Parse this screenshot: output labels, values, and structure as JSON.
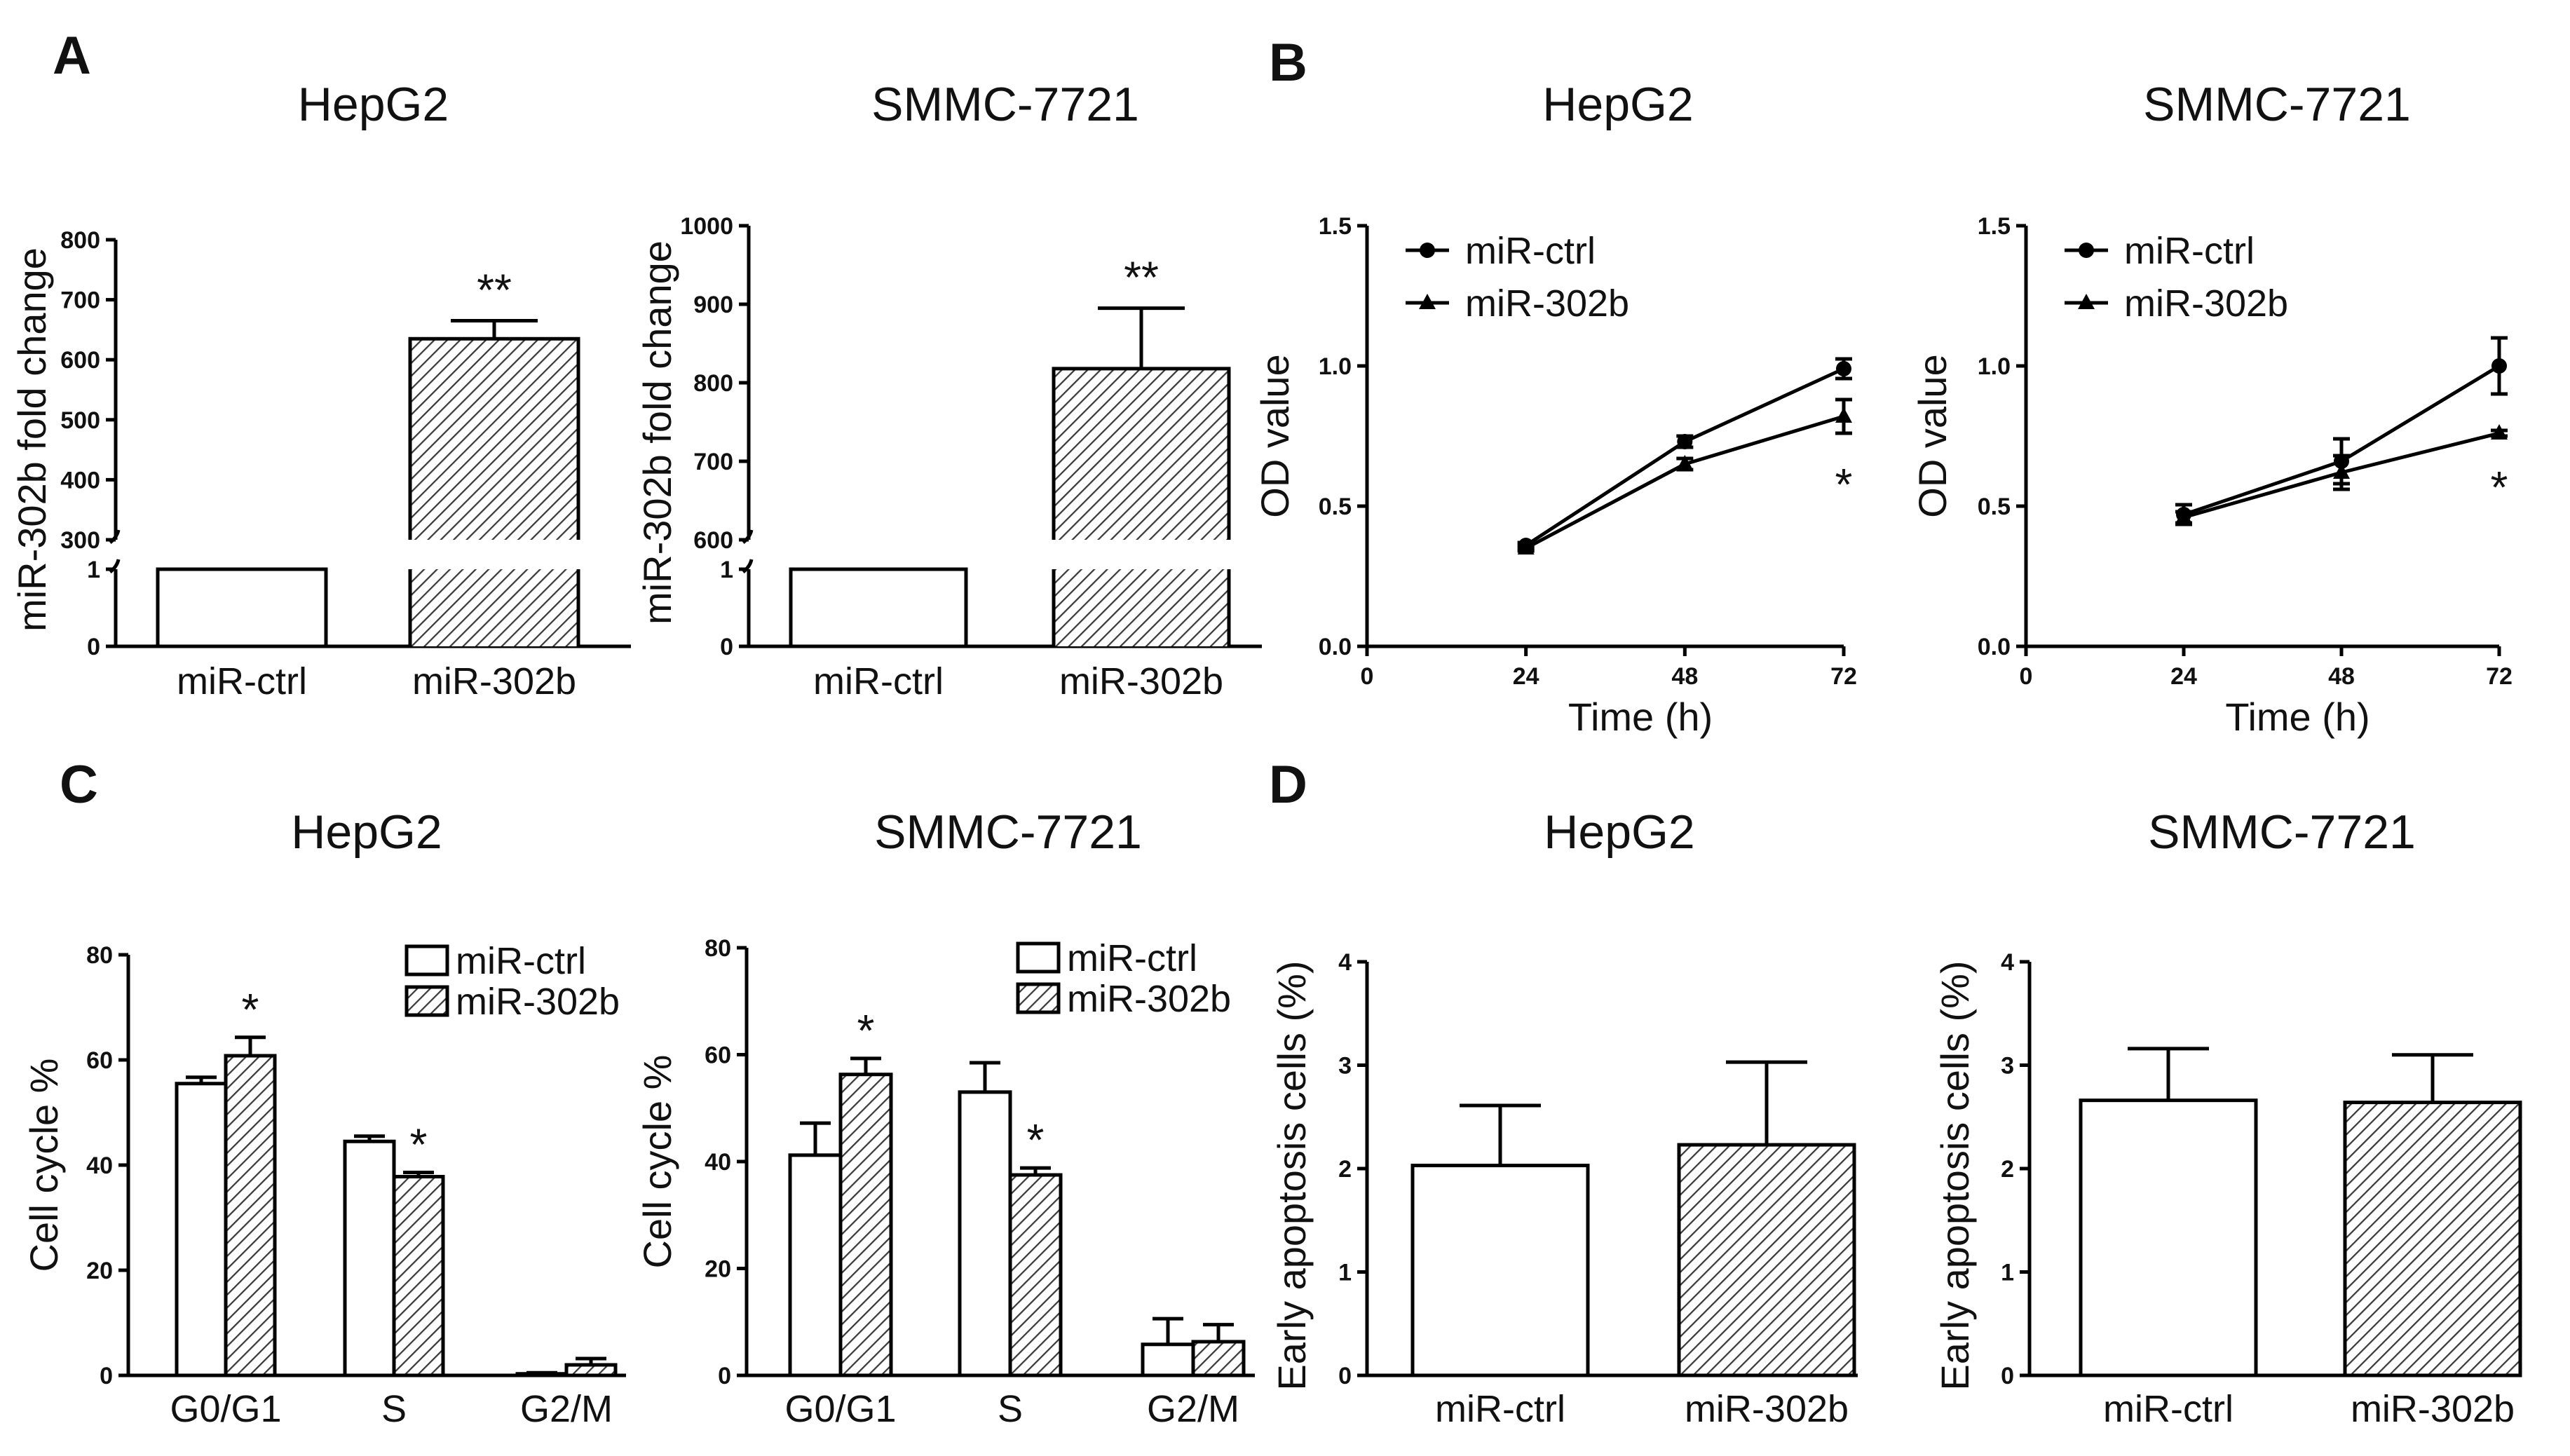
{
  "panel_labels": [
    "A",
    "B",
    "C",
    "D"
  ],
  "chart_data": [
    {
      "type": "bar",
      "panel": "A",
      "title": "HepG2",
      "categories": [
        "miR-ctrl",
        "miR-302b"
      ],
      "values": [
        1,
        635
      ],
      "errors": [
        0,
        30
      ],
      "styles": [
        "open",
        "hatched"
      ],
      "annotations": [
        "",
        "**"
      ],
      "ylabel": "miR-302b fold change",
      "ylim": [
        0,
        800
      ],
      "axis_break": [
        1,
        300
      ],
      "yticks_lower": [
        "0",
        "1"
      ],
      "yticks_upper": [
        "300",
        "400",
        "500",
        "600",
        "700",
        "800"
      ]
    },
    {
      "type": "bar",
      "panel": "A",
      "title": "SMMC-7721",
      "categories": [
        "miR-ctrl",
        "miR-302b"
      ],
      "values": [
        1,
        818
      ],
      "errors": [
        0,
        77
      ],
      "styles": [
        "open",
        "hatched"
      ],
      "annotations": [
        "",
        "**"
      ],
      "ylabel": "miR-302b fold change",
      "ylim": [
        0,
        1000
      ],
      "axis_break": [
        1,
        600
      ],
      "yticks_lower": [
        "0",
        "1"
      ],
      "yticks_upper": [
        "600",
        "700",
        "800",
        "900",
        "1000"
      ]
    },
    {
      "type": "line",
      "panel": "B",
      "title": "HepG2",
      "x": [
        24,
        48,
        72
      ],
      "series": [
        {
          "name": "miR-ctrl",
          "marker": "circle",
          "values": [
            0.36,
            0.73,
            0.99
          ],
          "errors": [
            0.01,
            0.02,
            0.035
          ]
        },
        {
          "name": "miR-302b",
          "marker": "triangle",
          "values": [
            0.35,
            0.65,
            0.82
          ],
          "errors": [
            0.01,
            0.02,
            0.06
          ]
        }
      ],
      "annotation": {
        "x": 72,
        "text": "*"
      },
      "xlabel": "Time (h)",
      "ylabel": "OD value",
      "xlim": [
        0,
        72
      ],
      "ylim": [
        0,
        1.5
      ],
      "xticks": [
        "0",
        "24",
        "48",
        "72"
      ],
      "yticks": [
        "0.0",
        "0.5",
        "1.0",
        "1.5"
      ],
      "legend": "top-left"
    },
    {
      "type": "line",
      "panel": "B",
      "title": "SMMC-7721",
      "x": [
        24,
        48,
        72
      ],
      "series": [
        {
          "name": "miR-ctrl",
          "marker": "circle",
          "values": [
            0.47,
            0.66,
            1.0
          ],
          "errors": [
            0.035,
            0.08,
            0.1
          ]
        },
        {
          "name": "miR-302b",
          "marker": "triangle",
          "values": [
            0.46,
            0.62,
            0.76
          ],
          "errors": [
            0.02,
            0.06,
            0.01
          ]
        }
      ],
      "annotation": {
        "x": 72,
        "text": "*"
      },
      "xlabel": "Time (h)",
      "ylabel": "OD value",
      "xlim": [
        0,
        72
      ],
      "ylim": [
        0,
        1.5
      ],
      "xticks": [
        "0",
        "24",
        "48",
        "72"
      ],
      "yticks": [
        "0.0",
        "0.5",
        "1.0",
        "1.5"
      ],
      "legend": "top-left"
    },
    {
      "type": "bar",
      "panel": "C",
      "title": "HepG2",
      "categories": [
        "G0/G1",
        "S",
        "G2/M"
      ],
      "series": [
        {
          "name": "miR-ctrl",
          "style": "open",
          "values": [
            55.5,
            44.5,
            0.3
          ],
          "errors": [
            1.2,
            1.0,
            0.2
          ]
        },
        {
          "name": "miR-302b",
          "style": "hatched",
          "values": [
            60.8,
            37.8,
            2.0
          ],
          "errors": [
            3.5,
            0.8,
            1.2
          ]
        }
      ],
      "annotations": [
        "*",
        "*",
        ""
      ],
      "ylabel": "Cell cycle %",
      "ylim": [
        0,
        80
      ],
      "yticks": [
        "0",
        "20",
        "40",
        "60",
        "80"
      ],
      "legend": "top-right"
    },
    {
      "type": "bar",
      "panel": "C",
      "title": "SMMC-7721",
      "categories": [
        "G0/G1",
        "S",
        "G2/M"
      ],
      "series": [
        {
          "name": "miR-ctrl",
          "style": "open",
          "values": [
            41.2,
            53.0,
            5.8
          ],
          "errors": [
            6.0,
            5.5,
            4.8
          ]
        },
        {
          "name": "miR-302b",
          "style": "hatched",
          "values": [
            56.3,
            37.5,
            6.3
          ],
          "errors": [
            3.0,
            1.3,
            3.2
          ]
        }
      ],
      "annotations": [
        "*",
        "*",
        ""
      ],
      "ylabel": "Cell cycle %",
      "ylim": [
        0,
        80
      ],
      "yticks": [
        "0",
        "20",
        "40",
        "60",
        "80"
      ],
      "legend": "top-right"
    },
    {
      "type": "bar",
      "panel": "D",
      "title": "HepG2",
      "categories": [
        "miR-ctrl",
        "miR-302b"
      ],
      "values": [
        2.03,
        2.23
      ],
      "errors": [
        0.58,
        0.8
      ],
      "styles": [
        "open",
        "hatched"
      ],
      "annotations": [
        "",
        ""
      ],
      "ylabel": "Early apoptosis cells (%)",
      "ylim": [
        0,
        4
      ],
      "yticks": [
        "0",
        "1",
        "2",
        "3",
        "4"
      ]
    },
    {
      "type": "bar",
      "panel": "D",
      "title": "SMMC-7721",
      "categories": [
        "miR-ctrl",
        "miR-302b"
      ],
      "values": [
        2.66,
        2.64
      ],
      "errors": [
        0.5,
        0.46
      ],
      "styles": [
        "open",
        "hatched"
      ],
      "annotations": [
        "",
        ""
      ],
      "ylabel": "Early apoptosis cells (%)",
      "ylim": [
        0,
        4
      ],
      "yticks": [
        "0",
        "1",
        "2",
        "3",
        "4"
      ]
    }
  ]
}
